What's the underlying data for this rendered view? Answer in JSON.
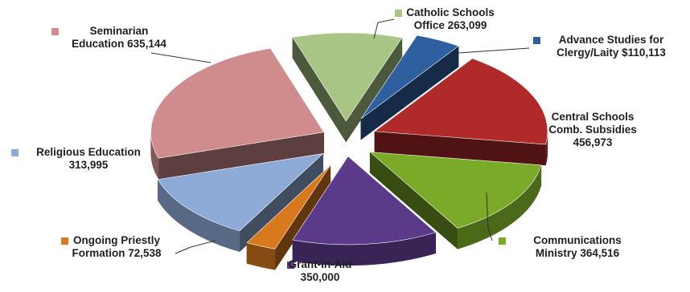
{
  "chart_data": {
    "type": "pie",
    "style": "3d-exploded",
    "legend": "none",
    "slices": [
      {
        "label": "Catholic Schools Office",
        "value": 263099,
        "color": "#a9c585",
        "label_lines": [
          "Catholic Schools",
          "Office 263,099"
        ]
      },
      {
        "label": "Advance Studies for Clergy/Laity",
        "value": 110113,
        "color": "#2e5f9e",
        "label_lines": [
          "Advance Studies for",
          "Clergy/Laity $110,113"
        ]
      },
      {
        "label": "Central Schools Comb. Subsidies",
        "value": 456973,
        "color": "#b02a2a",
        "label_lines": [
          "Central Schools",
          "Comb. Subsidies",
          "456,973"
        ]
      },
      {
        "label": "Communications Ministry",
        "value": 364516,
        "color": "#7aaa28",
        "label_lines": [
          "Communications",
          "Ministry 364,516"
        ]
      },
      {
        "label": "Grant-In-Aid",
        "value": 350000,
        "color": "#5c3a8a",
        "label_lines": [
          "Grant-In-Aid",
          "350,000"
        ]
      },
      {
        "label": "Ongoing Priestly Formation",
        "value": 72538,
        "color": "#d8791e",
        "label_lines": [
          "Ongoing Priestly",
          "Formation 72,538"
        ]
      },
      {
        "label": "Religious Education",
        "value": 313995,
        "color": "#8eaad6",
        "label_lines": [
          "Religious Education",
          "313,995"
        ]
      },
      {
        "label": "Seminarian Education",
        "value": 635144,
        "color": "#d08c8c",
        "label_lines": [
          "Seminarian",
          "Education 635,144"
        ]
      }
    ]
  }
}
